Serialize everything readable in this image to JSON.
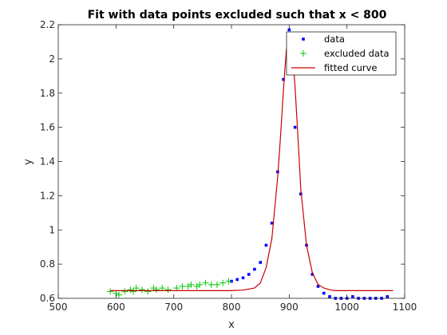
{
  "chart_data": {
    "type": "scatter",
    "title": "Fit with data points excluded such that x < 800",
    "xlabel": "x",
    "ylabel": "y",
    "xlim": [
      500,
      1100
    ],
    "ylim": [
      0.6,
      2.2
    ],
    "xticks": [
      "500",
      "600",
      "700",
      "800",
      "900",
      "1000",
      "1100"
    ],
    "yticks": [
      "0.6",
      "0.8",
      "1",
      "1.2",
      "1.4",
      "1.6",
      "1.8",
      "2",
      "2.2"
    ],
    "grid": false,
    "legend_position": "top-right",
    "series": [
      {
        "name": "data",
        "marker": "square",
        "color": "#0000ff",
        "x": [
          800,
          810,
          820,
          830,
          840,
          850,
          860,
          870,
          880,
          890,
          900,
          910,
          920,
          930,
          940,
          950,
          960,
          970,
          980,
          990,
          1000,
          1010,
          1020,
          1030,
          1040,
          1050,
          1060,
          1070
        ],
        "y": [
          0.7,
          0.71,
          0.72,
          0.74,
          0.77,
          0.81,
          0.91,
          1.04,
          1.34,
          1.88,
          2.17,
          1.6,
          1.21,
          0.91,
          0.74,
          0.67,
          0.63,
          0.61,
          0.6,
          0.6,
          0.6,
          0.61,
          0.6,
          0.6,
          0.6,
          0.6,
          0.6,
          0.61
        ]
      },
      {
        "name": "excluded data",
        "marker": "plus",
        "color": "#00c800",
        "x": [
          590,
          600,
          605,
          615,
          625,
          630,
          635,
          645,
          655,
          665,
          670,
          680,
          690,
          705,
          715,
          725,
          730,
          740,
          745,
          755,
          765,
          775,
          785,
          795
        ],
        "y": [
          0.64,
          0.63,
          0.62,
          0.64,
          0.65,
          0.64,
          0.66,
          0.65,
          0.64,
          0.66,
          0.65,
          0.66,
          0.65,
          0.66,
          0.67,
          0.67,
          0.68,
          0.67,
          0.68,
          0.69,
          0.68,
          0.68,
          0.69,
          0.7
        ]
      },
      {
        "name": "fitted curve",
        "marker": "line",
        "color": "#cc0000",
        "x": [
          590,
          700,
          800,
          820,
          840,
          850,
          860,
          870,
          880,
          885,
          890,
          895,
          900,
          905,
          910,
          915,
          920,
          930,
          940,
          950,
          960,
          970,
          980,
          1000,
          1080
        ],
        "y": [
          0.645,
          0.645,
          0.645,
          0.648,
          0.66,
          0.69,
          0.78,
          0.95,
          1.31,
          1.55,
          1.82,
          2.05,
          2.15,
          2.06,
          1.84,
          1.55,
          1.24,
          0.91,
          0.75,
          0.68,
          0.66,
          0.65,
          0.645,
          0.645,
          0.645
        ]
      }
    ]
  }
}
